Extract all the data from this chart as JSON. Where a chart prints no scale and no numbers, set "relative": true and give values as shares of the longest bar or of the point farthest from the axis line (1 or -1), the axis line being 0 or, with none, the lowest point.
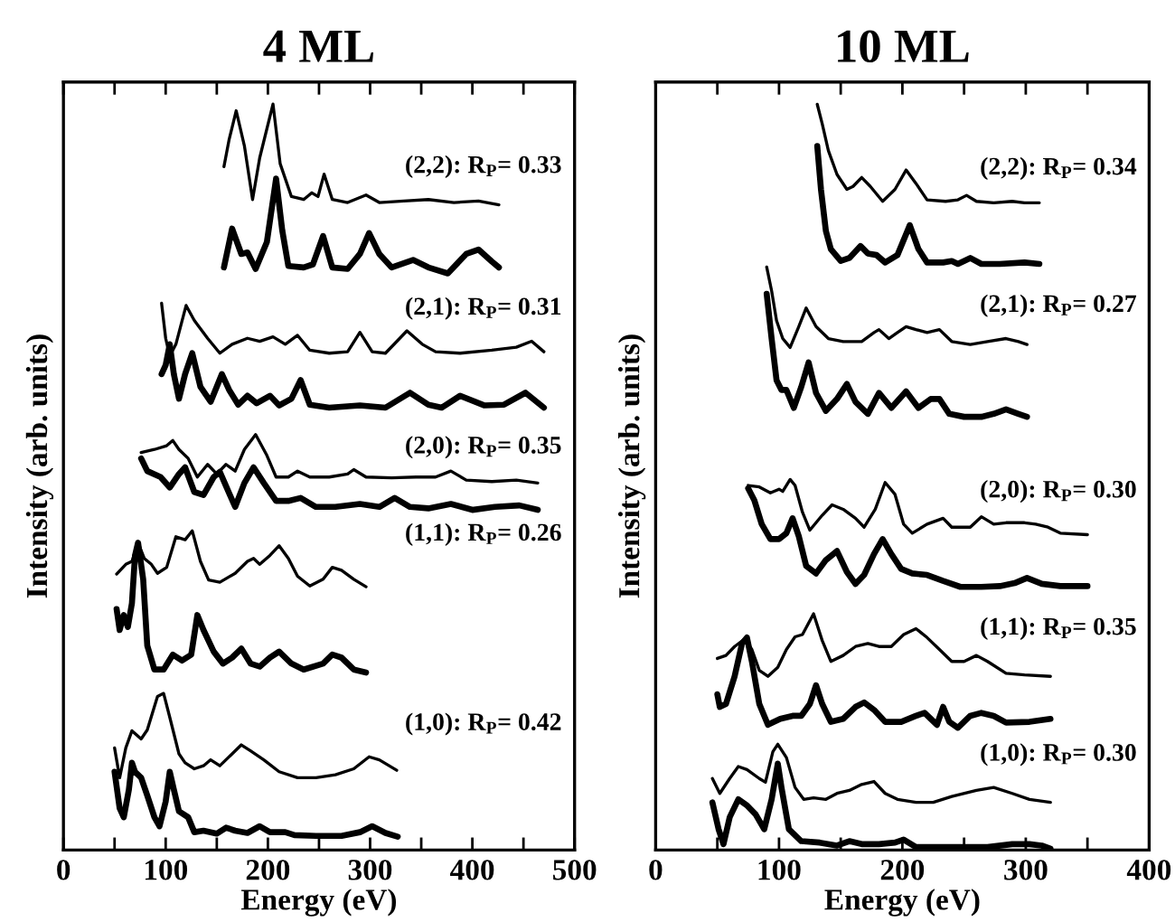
{
  "chart_data": [
    {
      "type": "line",
      "title": "4 ML",
      "xlabel": "Energy (eV)",
      "ylabel": "Intensity (arb. units)",
      "relative": true,
      "tick_labels": "x",
      "xlim": [
        0,
        500
      ],
      "xticks": [
        0,
        {
          "value": 50,
          "label": null
        },
        100,
        {
          "value": 150,
          "label": null
        },
        200,
        {
          "value": 250,
          "label": null
        },
        300,
        {
          "value": 350,
          "label": null
        },
        400,
        {
          "value": 450,
          "label": null
        },
        500
      ],
      "series": [
        {
          "color": "#000000",
          "x": [
            157,
            162,
            169,
            177,
            185,
            192,
            205,
            212,
            223,
            235,
            243,
            249,
            255,
            263,
            278,
            296,
            309,
            333,
            357,
            382,
            406,
            426
          ],
          "values": [
            0.916,
            0.952,
            0.991,
            0.944,
            0.872,
            0.928,
            1.0,
            0.92,
            0.876,
            0.872,
            0.881,
            0.876,
            0.906,
            0.872,
            0.868,
            0.878,
            0.868,
            0.87,
            0.872,
            0.868,
            0.87,
            0.865
          ]
        },
        {
          "color": "#000000",
          "x": [
            157,
            165,
            174,
            180,
            188,
            199,
            208,
            214,
            220,
            235,
            244,
            254,
            263,
            278,
            290,
            299,
            309,
            321,
            342,
            357,
            376,
            394,
            406,
            419,
            426
          ],
          "values": [
            0.781,
            0.833,
            0.799,
            0.801,
            0.779,
            0.815,
            0.9,
            0.831,
            0.783,
            0.781,
            0.785,
            0.823,
            0.781,
            0.779,
            0.799,
            0.827,
            0.799,
            0.781,
            0.791,
            0.781,
            0.773,
            0.799,
            0.805,
            0.789,
            0.781
          ]
        },
        {
          "color": "#000000",
          "x": [
            96,
            100,
            104,
            110,
            120,
            128,
            141,
            153,
            165,
            180,
            192,
            205,
            217,
            229,
            241,
            260,
            278,
            290,
            302,
            315,
            336,
            351,
            364,
            388,
            419,
            443,
            458,
            470
          ],
          "values": [
            0.733,
            0.686,
            0.662,
            0.678,
            0.73,
            0.71,
            0.686,
            0.666,
            0.678,
            0.686,
            0.682,
            0.688,
            0.678,
            0.69,
            0.67,
            0.666,
            0.668,
            0.694,
            0.668,
            0.666,
            0.696,
            0.678,
            0.668,
            0.666,
            0.67,
            0.674,
            0.682,
            0.668
          ]
        },
        {
          "color": "#000000",
          "x": [
            96,
            100,
            104,
            108,
            113,
            119,
            126,
            134,
            144,
            155,
            162,
            171,
            180,
            189,
            202,
            211,
            223,
            232,
            241,
            260,
            290,
            315,
            339,
            357,
            370,
            388,
            412,
            431,
            452,
            470
          ],
          "values": [
            0.638,
            0.65,
            0.678,
            0.638,
            0.605,
            0.638,
            0.666,
            0.621,
            0.601,
            0.638,
            0.617,
            0.597,
            0.609,
            0.599,
            0.609,
            0.596,
            0.605,
            0.63,
            0.597,
            0.593,
            0.596,
            0.593,
            0.613,
            0.597,
            0.593,
            0.609,
            0.596,
            0.597,
            0.613,
            0.593
          ]
        },
        {
          "color": "#000000",
          "x": [
            76,
            89,
            101,
            107,
            113,
            122,
            131,
            141,
            150,
            159,
            168,
            177,
            188,
            199,
            208,
            220,
            229,
            241,
            260,
            278,
            284,
            296,
            321,
            345,
            364,
            379,
            394,
            419,
            443,
            464
          ],
          "values": [
            0.533,
            0.537,
            0.542,
            0.549,
            0.537,
            0.525,
            0.5,
            0.517,
            0.504,
            0.517,
            0.508,
            0.537,
            0.557,
            0.529,
            0.5,
            0.5,
            0.508,
            0.5,
            0.5,
            0.504,
            0.51,
            0.5,
            0.499,
            0.5,
            0.5,
            0.508,
            0.496,
            0.494,
            0.496,
            0.492
          ]
        },
        {
          "color": "#000000",
          "x": [
            76,
            82,
            95,
            104,
            113,
            119,
            128,
            137,
            147,
            153,
            159,
            168,
            177,
            186,
            196,
            208,
            220,
            232,
            247,
            266,
            290,
            309,
            324,
            339,
            357,
            379,
            400,
            422,
            446,
            464
          ],
          "values": [
            0.525,
            0.508,
            0.5,
            0.486,
            0.504,
            0.513,
            0.48,
            0.476,
            0.5,
            0.507,
            0.488,
            0.46,
            0.492,
            0.513,
            0.492,
            0.468,
            0.468,
            0.472,
            0.46,
            0.46,
            0.464,
            0.46,
            0.472,
            0.46,
            0.458,
            0.464,
            0.456,
            0.46,
            0.462,
            0.456
          ]
        },
        {
          "color": "#000000",
          "x": [
            52,
            61,
            67,
            73,
            79,
            86,
            92,
            101,
            110,
            119,
            126,
            134,
            142,
            153,
            168,
            180,
            186,
            192,
            202,
            211,
            220,
            229,
            241,
            254,
            263,
            272,
            284,
            296
          ],
          "values": [
            0.37,
            0.383,
            0.387,
            0.412,
            0.391,
            0.383,
            0.371,
            0.379,
            0.42,
            0.416,
            0.428,
            0.387,
            0.362,
            0.359,
            0.371,
            0.387,
            0.391,
            0.383,
            0.395,
            0.408,
            0.391,
            0.367,
            0.354,
            0.363,
            0.379,
            0.375,
            0.363,
            0.353
          ]
        },
        {
          "color": "#000000",
          "x": [
            52,
            55,
            59,
            63,
            67,
            70,
            73,
            78,
            82,
            89,
            98,
            107,
            116,
            125,
            131,
            137,
            147,
            156,
            165,
            174,
            183,
            192,
            202,
            211,
            223,
            235,
            254,
            263,
            272,
            284,
            296
          ],
          "values": [
            0.323,
            0.295,
            0.315,
            0.299,
            0.331,
            0.395,
            0.412,
            0.363,
            0.274,
            0.242,
            0.242,
            0.262,
            0.254,
            0.262,
            0.315,
            0.295,
            0.266,
            0.25,
            0.258,
            0.27,
            0.25,
            0.246,
            0.258,
            0.266,
            0.25,
            0.242,
            0.25,
            0.262,
            0.258,
            0.242,
            0.238
          ]
        },
        {
          "color": "#000000",
          "x": [
            50,
            55,
            61,
            67,
            76,
            82,
            92,
            98,
            104,
            113,
            119,
            128,
            137,
            144,
            153,
            165,
            174,
            183,
            196,
            211,
            229,
            247,
            266,
            284,
            299,
            309,
            326
          ],
          "values": [
            0.137,
            0.097,
            0.137,
            0.16,
            0.149,
            0.161,
            0.206,
            0.21,
            0.178,
            0.129,
            0.117,
            0.109,
            0.113,
            0.121,
            0.113,
            0.129,
            0.141,
            0.133,
            0.121,
            0.105,
            0.097,
            0.097,
            0.101,
            0.109,
            0.125,
            0.121,
            0.107
          ]
        },
        {
          "color": "#000000",
          "x": [
            50,
            55,
            59,
            64,
            67,
            70,
            76,
            82,
            89,
            94,
            100,
            104,
            108,
            113,
            122,
            128,
            137,
            150,
            159,
            168,
            180,
            192,
            202,
            217,
            226,
            247,
            272,
            290,
            302,
            315,
            327
          ],
          "values": [
            0.105,
            0.056,
            0.044,
            0.081,
            0.117,
            0.105,
            0.097,
            0.073,
            0.044,
            0.032,
            0.065,
            0.105,
            0.081,
            0.052,
            0.044,
            0.024,
            0.026,
            0.022,
            0.03,
            0.026,
            0.023,
            0.032,
            0.024,
            0.024,
            0.02,
            0.019,
            0.019,
            0.024,
            0.032,
            0.023,
            0.018
          ]
        }
      ],
      "annotations": [
        "(2,2): R$_{P}$= 0.33",
        "(2,1): R$_{P}$= 0.31",
        "(2,0): R$_{P}$= 0.35",
        "(1,1): R$_{P}$= 0.26",
        "(1,0): R$_{P}$= 0.42"
      ]
    },
    {
      "type": "line",
      "title": "10 ML",
      "xlabel": "Energy (eV)",
      "ylabel": "Intensity (arb. units)",
      "relative": true,
      "tick_labels": "x",
      "xlim": [
        0,
        400
      ],
      "xticks": [
        0,
        {
          "value": 50,
          "label": null
        },
        100,
        {
          "value": 150,
          "label": null
        },
        200,
        {
          "value": 250,
          "label": null
        },
        300,
        {
          "value": 350,
          "label": null
        },
        400
      ],
      "series": [
        {
          "color": "#000000",
          "x": [
            131,
            135,
            140,
            147,
            155,
            160,
            167,
            174,
            184,
            194,
            203,
            211,
            220,
            235,
            245,
            252,
            260,
            274,
            289,
            299,
            311
          ],
          "values": [
            1.0,
            0.974,
            0.938,
            0.906,
            0.886,
            0.89,
            0.902,
            0.89,
            0.87,
            0.886,
            0.912,
            0.894,
            0.872,
            0.87,
            0.872,
            0.878,
            0.87,
            0.868,
            0.87,
            0.868,
            0.868
          ]
        },
        {
          "color": "#000000",
          "x": [
            131,
            134,
            138,
            142,
            150,
            157,
            166,
            172,
            179,
            186,
            196,
            206,
            213,
            220,
            233,
            240,
            245,
            255,
            264,
            279,
            299,
            311
          ],
          "values": [
            0.944,
            0.886,
            0.83,
            0.806,
            0.79,
            0.794,
            0.81,
            0.8,
            0.798,
            0.788,
            0.798,
            0.838,
            0.806,
            0.788,
            0.788,
            0.79,
            0.786,
            0.794,
            0.786,
            0.786,
            0.788,
            0.786
          ]
        },
        {
          "color": "#000000",
          "x": [
            90,
            94,
            98,
            103,
            109,
            116,
            122,
            130,
            140,
            152,
            167,
            177,
            181,
            189,
            196,
            203,
            211,
            220,
            230,
            240,
            255,
            269,
            284,
            294,
            301
          ],
          "values": [
            0.782,
            0.75,
            0.71,
            0.686,
            0.674,
            0.702,
            0.727,
            0.702,
            0.686,
            0.682,
            0.682,
            0.694,
            0.698,
            0.686,
            0.694,
            0.702,
            0.698,
            0.694,
            0.698,
            0.682,
            0.678,
            0.682,
            0.686,
            0.682,
            0.678
          ]
        },
        {
          "color": "#000000",
          "x": [
            90,
            94,
            98,
            102,
            106,
            112,
            118,
            124,
            130,
            138,
            147,
            155,
            162,
            172,
            181,
            191,
            203,
            213,
            223,
            230,
            238,
            250,
            264,
            274,
            284,
            294,
            301
          ],
          "values": [
            0.746,
            0.686,
            0.63,
            0.617,
            0.617,
            0.593,
            0.621,
            0.654,
            0.613,
            0.589,
            0.605,
            0.625,
            0.601,
            0.585,
            0.613,
            0.593,
            0.615,
            0.593,
            0.605,
            0.605,
            0.585,
            0.581,
            0.581,
            0.585,
            0.591,
            0.585,
            0.581
          ]
        },
        {
          "color": "#000000",
          "x": [
            75,
            84,
            93,
            100,
            103,
            109,
            113,
            119,
            125,
            135,
            143,
            152,
            162,
            169,
            178,
            186,
            194,
            201,
            208,
            220,
            233,
            240,
            255,
            264,
            274,
            284,
            299,
            308,
            318,
            328,
            350
          ],
          "values": [
            0.489,
            0.487,
            0.479,
            0.484,
            0.481,
            0.497,
            0.489,
            0.453,
            0.429,
            0.449,
            0.463,
            0.457,
            0.445,
            0.433,
            0.457,
            0.493,
            0.477,
            0.437,
            0.425,
            0.437,
            0.445,
            0.433,
            0.433,
            0.447,
            0.437,
            0.439,
            0.439,
            0.437,
            0.433,
            0.425,
            0.423
          ]
        },
        {
          "color": "#000000",
          "x": [
            75,
            80,
            86,
            93,
            100,
            106,
            111,
            116,
            122,
            130,
            138,
            147,
            155,
            162,
            169,
            177,
            184,
            191,
            199,
            208,
            220,
            233,
            247,
            264,
            279,
            291,
            301,
            313,
            328,
            350
          ],
          "values": [
            0.485,
            0.469,
            0.437,
            0.417,
            0.417,
            0.425,
            0.445,
            0.421,
            0.381,
            0.371,
            0.389,
            0.401,
            0.373,
            0.357,
            0.369,
            0.397,
            0.417,
            0.397,
            0.377,
            0.371,
            0.369,
            0.361,
            0.353,
            0.353,
            0.354,
            0.358,
            0.365,
            0.357,
            0.354,
            0.354
          ]
        },
        {
          "color": "#000000",
          "x": [
            50,
            57,
            64,
            72,
            78,
            84,
            91,
            99,
            106,
            113,
            119,
            128,
            135,
            142,
            152,
            162,
            172,
            181,
            191,
            201,
            211,
            220,
            230,
            240,
            250,
            260,
            269,
            284,
            299,
            320
          ],
          "values": [
            0.257,
            0.261,
            0.273,
            0.283,
            0.269,
            0.241,
            0.233,
            0.245,
            0.269,
            0.286,
            0.289,
            0.317,
            0.281,
            0.253,
            0.261,
            0.273,
            0.277,
            0.273,
            0.273,
            0.289,
            0.297,
            0.285,
            0.269,
            0.253,
            0.253,
            0.261,
            0.253,
            0.237,
            0.235,
            0.233
          ]
        },
        {
          "color": "#000000",
          "x": [
            50,
            52,
            57,
            64,
            70,
            74,
            78,
            84,
            91,
            101,
            111,
            118,
            125,
            130,
            135,
            142,
            152,
            162,
            169,
            177,
            186,
            199,
            211,
            218,
            223,
            228,
            233,
            238,
            245,
            255,
            264,
            274,
            284,
            303,
            320
          ],
          "values": [
            0.209,
            0.192,
            0.196,
            0.233,
            0.277,
            0.285,
            0.253,
            0.196,
            0.168,
            0.176,
            0.18,
            0.18,
            0.196,
            0.221,
            0.196,
            0.172,
            0.176,
            0.192,
            0.198,
            0.188,
            0.172,
            0.172,
            0.18,
            0.184,
            0.176,
            0.168,
            0.192,
            0.172,
            0.164,
            0.18,
            0.184,
            0.18,
            0.171,
            0.172,
            0.176
          ]
        },
        {
          "color": "#000000",
          "x": [
            46,
            52,
            60,
            67,
            74,
            84,
            89,
            95,
            99,
            106,
            113,
            120,
            128,
            138,
            147,
            157,
            167,
            177,
            186,
            196,
            211,
            225,
            240,
            260,
            274,
            289,
            303,
            320
          ],
          "values": [
            0.096,
            0.076,
            0.096,
            0.112,
            0.108,
            0.096,
            0.091,
            0.132,
            0.142,
            0.124,
            0.084,
            0.068,
            0.07,
            0.068,
            0.076,
            0.08,
            0.088,
            0.092,
            0.076,
            0.068,
            0.064,
            0.064,
            0.072,
            0.08,
            0.084,
            0.076,
            0.068,
            0.064
          ]
        },
        {
          "color": "#000000",
          "x": [
            46,
            51,
            55,
            60,
            67,
            74,
            81,
            88,
            94,
            99,
            102,
            108,
            118,
            133,
            147,
            157,
            167,
            181,
            194,
            201,
            211,
            230,
            250,
            269,
            289,
            303,
            313,
            320
          ],
          "values": [
            0.064,
            0.028,
            0.008,
            0.044,
            0.068,
            0.06,
            0.048,
            0.028,
            0.068,
            0.116,
            0.084,
            0.028,
            0.012,
            0.01,
            0.006,
            0.012,
            0.008,
            0.008,
            0.01,
            0.014,
            0.004,
            0.004,
            0.004,
            0.004,
            0.008,
            0.008,
            0.006,
            0.002
          ]
        }
      ],
      "annotations": [
        "(2,2): R$_{P}$= 0.34",
        "(2,1): R$_{P}$= 0.27",
        "(2,0): R$_{P}$= 0.30",
        "(1,1): R$_{P}$= 0.35",
        "(1,0): R$_{P}$= 0.30"
      ]
    }
  ]
}
